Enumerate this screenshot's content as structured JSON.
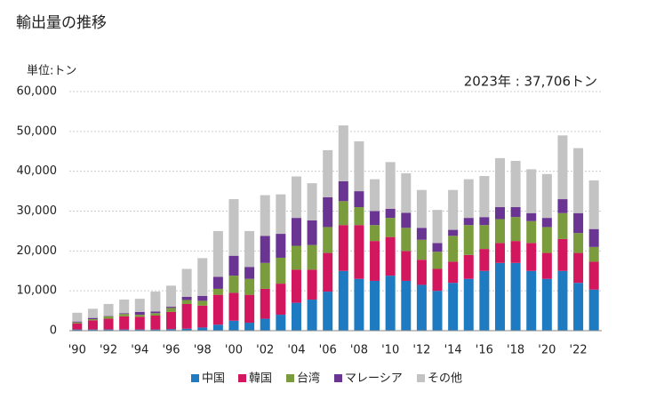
{
  "chart_data": {
    "type": "stacked_bar",
    "title": "輸出量の推移",
    "y_label": "単位:トン",
    "annotation": "2023年 : 37,706トン",
    "categories": [
      "'90",
      null,
      "'92",
      null,
      "'94",
      null,
      "'96",
      null,
      "'98",
      null,
      "'00",
      null,
      "'02",
      null,
      "'04",
      null,
      "'06",
      null,
      "'08",
      null,
      "'10",
      null,
      "'12",
      null,
      "'14",
      null,
      "'16",
      null,
      "'18",
      null,
      "'20",
      null,
      "'22",
      null
    ],
    "series": [
      {
        "name": "中国",
        "color": "#1f7bc1",
        "values": [
          300,
          300,
          300,
          300,
          300,
          300,
          400,
          500,
          800,
          1500,
          2500,
          2000,
          3000,
          4000,
          7000,
          7800,
          9800,
          15000,
          13000,
          12500,
          13800,
          12500,
          11500,
          10000,
          12000,
          13000,
          15000,
          17000,
          17000,
          15000,
          13000,
          15000,
          12000,
          10300
        ]
      },
      {
        "name": "韓国",
        "color": "#d3175e",
        "values": [
          1500,
          2300,
          2700,
          3300,
          3200,
          3500,
          4300,
          6200,
          5500,
          7500,
          7000,
          7000,
          7500,
          7800,
          8300,
          7500,
          9700,
          11500,
          13500,
          10000,
          9700,
          7500,
          6300,
          5500,
          5300,
          6000,
          5500,
          5000,
          5500,
          7000,
          6500,
          8000,
          7500,
          7000
        ]
      },
      {
        "name": "台湾",
        "color": "#7b9c3c",
        "values": [
          300,
          300,
          600,
          600,
          500,
          600,
          1000,
          1000,
          1200,
          1500,
          4300,
          4000,
          6500,
          6500,
          6000,
          6200,
          6500,
          6000,
          4500,
          4000,
          4800,
          5800,
          5000,
          4300,
          6500,
          7500,
          6000,
          6000,
          6000,
          5500,
          6500,
          6500,
          5000,
          3700
        ]
      },
      {
        "name": "マレーシア",
        "color": "#6a3592",
        "values": [
          200,
          300,
          100,
          200,
          700,
          400,
          300,
          800,
          1200,
          3000,
          5000,
          3000,
          6800,
          6000,
          7000,
          6200,
          7500,
          5000,
          4000,
          3500,
          2300,
          3800,
          3000,
          2200,
          1500,
          1800,
          2000,
          3000,
          2500,
          2000,
          2300,
          3500,
          5000,
          4500
        ]
      },
      {
        "name": "その他",
        "color": "#c3c3c3",
        "values": [
          2200,
          2300,
          3000,
          3400,
          3300,
          5000,
          5300,
          7000,
          9500,
          11500,
          14200,
          9000,
          10200,
          9900,
          10400,
          9300,
          11800,
          14000,
          12500,
          8000,
          11700,
          9900,
          9500,
          8300,
          10000,
          9700,
          10300,
          12300,
          11600,
          11000,
          11000,
          16000,
          16300,
          12206
        ]
      }
    ],
    "ylim": [
      0,
      60000
    ],
    "yticks": [
      0,
      {
        "value": 10000,
        "label": "10,000"
      },
      {
        "value": 20000,
        "label": "20,000"
      },
      {
        "value": 30000,
        "label": "30,000"
      },
      {
        "value": 40000,
        "label": "40,000"
      },
      {
        "value": 50000,
        "label": "50,000"
      },
      {
        "value": 60000,
        "label": "60,000"
      }
    ],
    "grid": true
  }
}
